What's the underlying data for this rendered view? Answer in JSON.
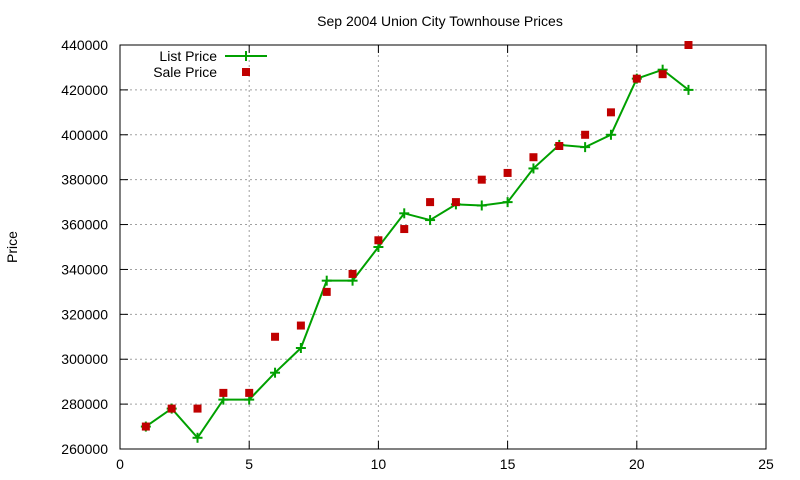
{
  "chart_data": {
    "type": "line",
    "title": "Sep 2004 Union City Townhouse Prices",
    "xlabel": "",
    "ylabel": "Price",
    "xlim": [
      0,
      25
    ],
    "ylim": [
      260000,
      440000
    ],
    "xticks": [
      0,
      5,
      10,
      15,
      20,
      25
    ],
    "yticks": [
      260000,
      280000,
      300000,
      320000,
      340000,
      360000,
      380000,
      400000,
      420000,
      440000
    ],
    "grid": true,
    "legend_position": "top-left",
    "series": [
      {
        "name": "List Price",
        "style": "line-plus",
        "color": "#00a000",
        "x": [
          1,
          2,
          3,
          4,
          5,
          6,
          7,
          8,
          9,
          10,
          11,
          12,
          13,
          14,
          15,
          16,
          17,
          18,
          19,
          20,
          21,
          22
        ],
        "values": [
          270000,
          278000,
          265000,
          282000,
          282000,
          294000,
          305000,
          335000,
          335000,
          350000,
          365000,
          362000,
          369000,
          368500,
          370000,
          385000,
          395500,
          394500,
          400000,
          425000,
          429000,
          420000
        ]
      },
      {
        "name": "Sale Price",
        "style": "square",
        "color": "#c00000",
        "x": [
          1,
          2,
          3,
          4,
          5,
          6,
          7,
          8,
          9,
          10,
          11,
          12,
          13,
          14,
          15,
          16,
          17,
          18,
          19,
          20,
          21,
          22
        ],
        "values": [
          270000,
          278000,
          278000,
          285000,
          285000,
          310000,
          315000,
          330000,
          338000,
          353000,
          358000,
          370000,
          370000,
          380000,
          383000,
          390000,
          395000,
          400000,
          410000,
          425000,
          427000,
          440000
        ]
      }
    ]
  }
}
